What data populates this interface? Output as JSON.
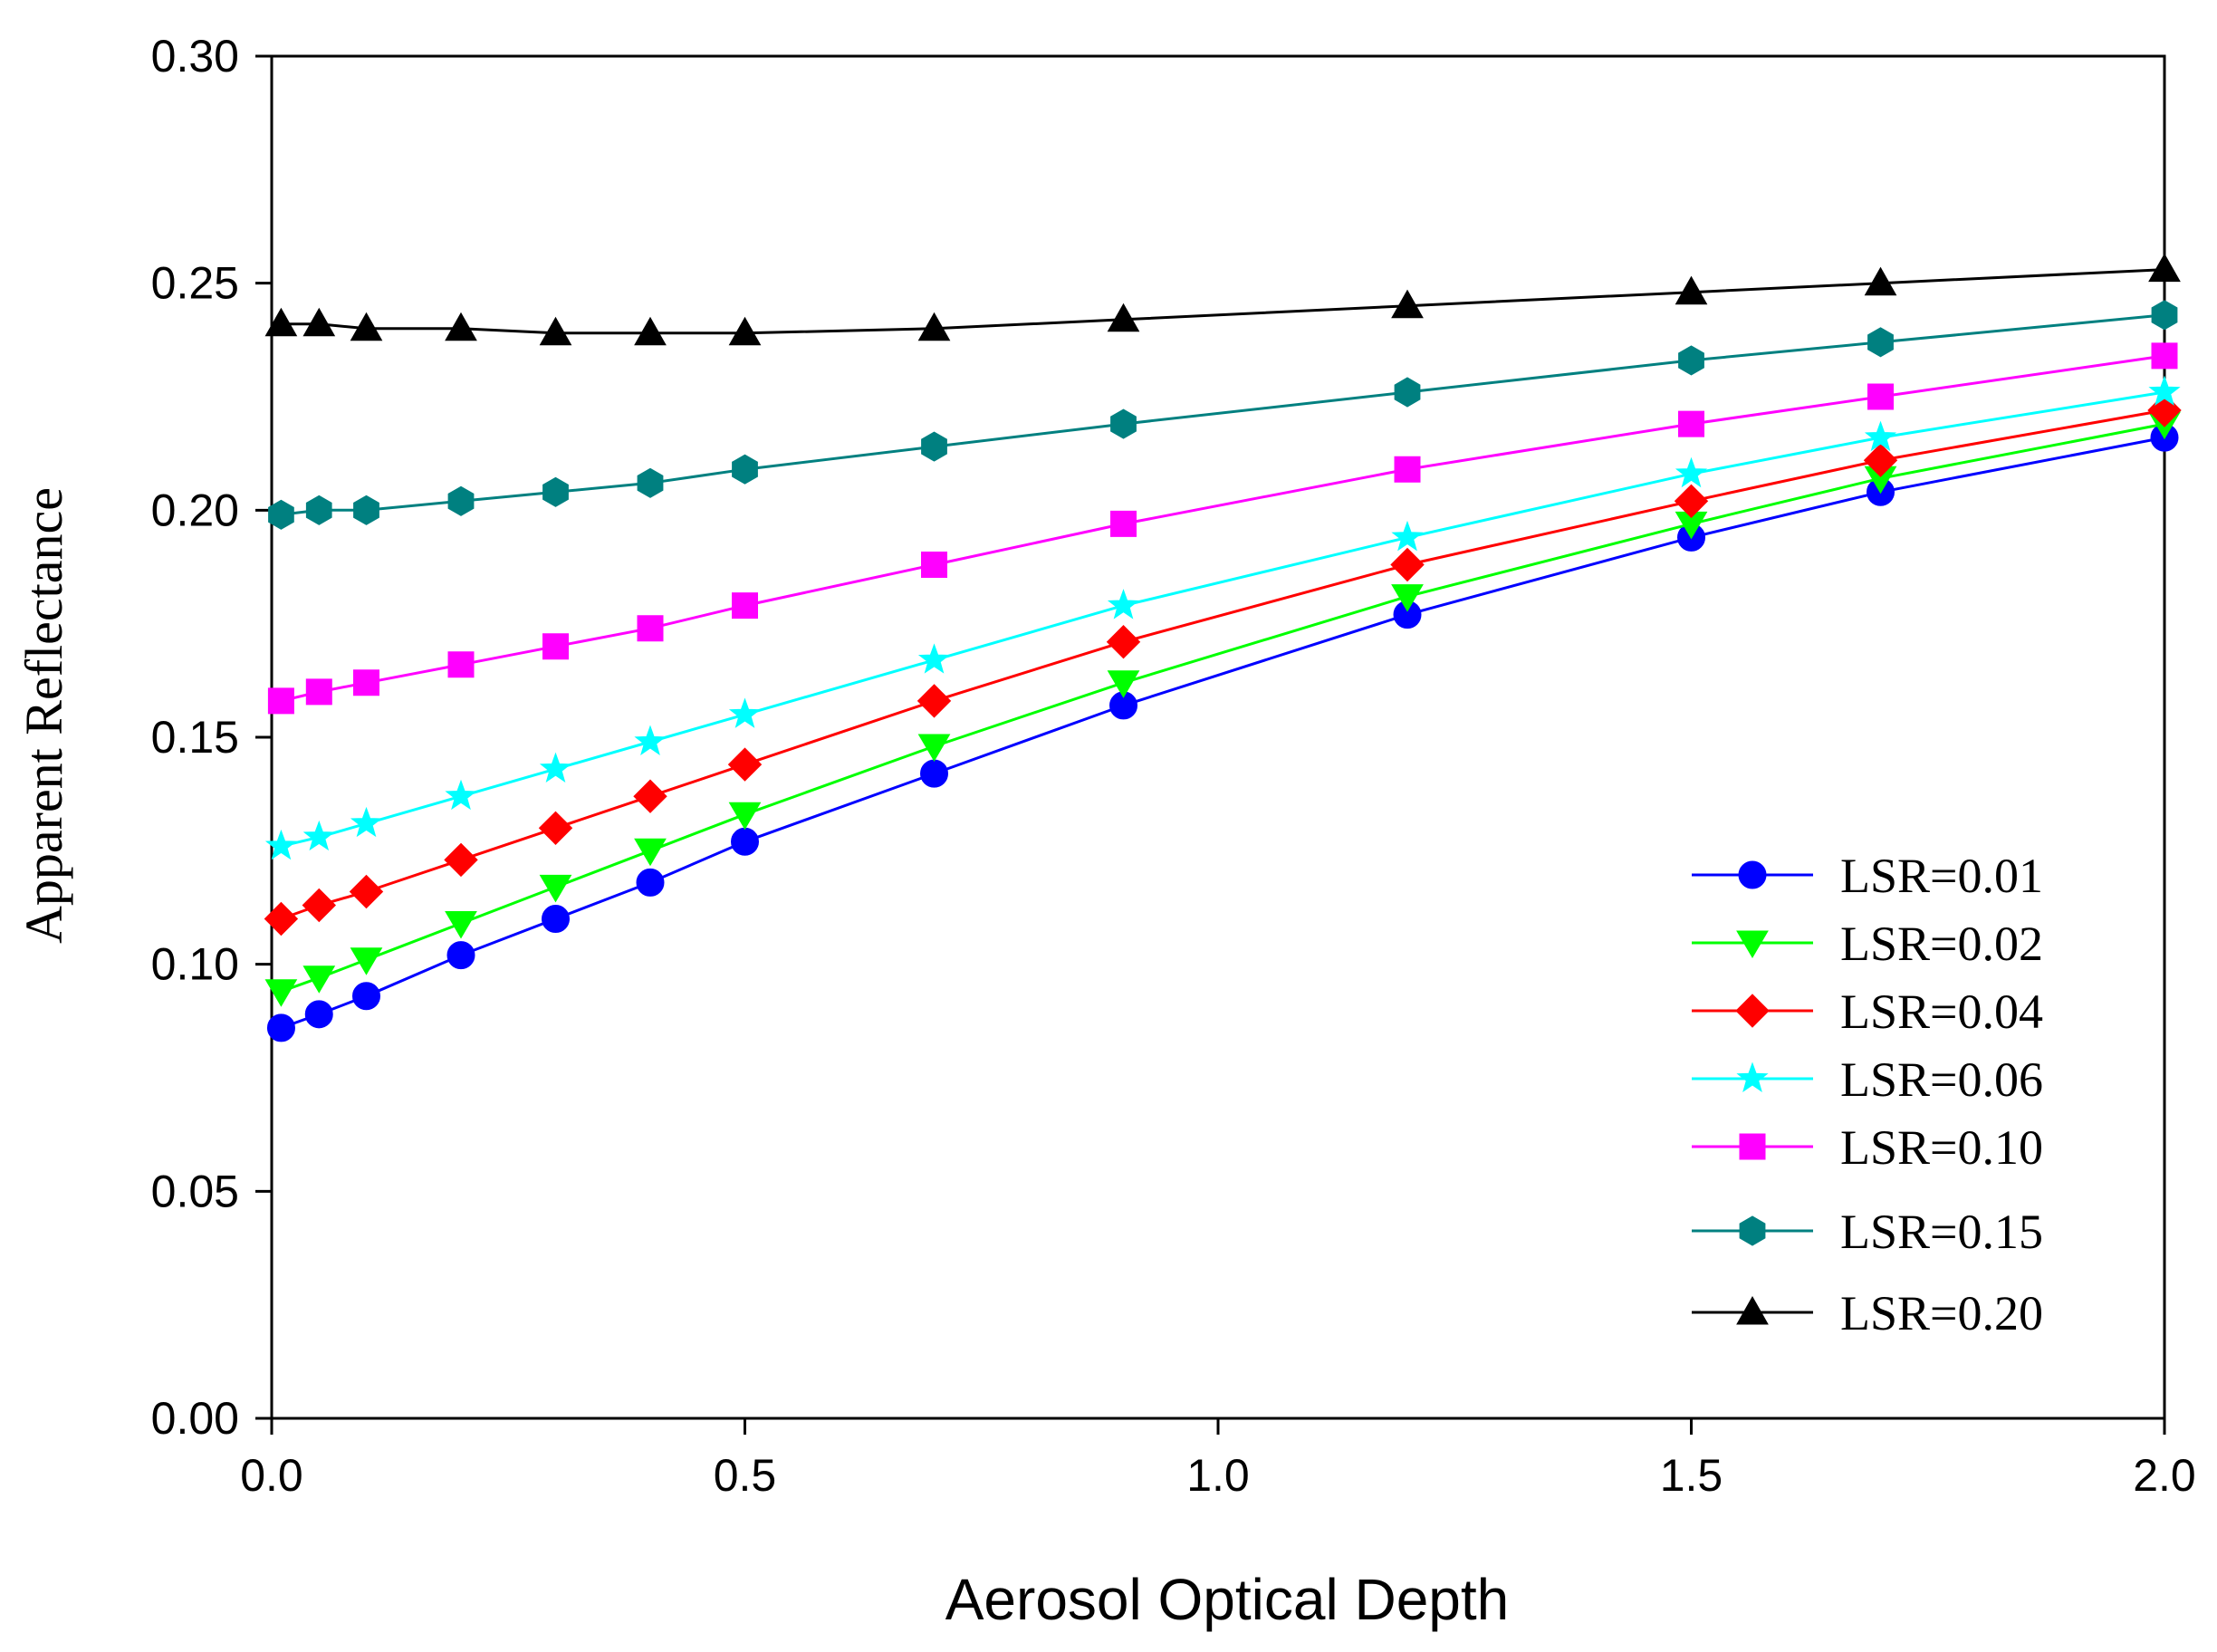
{
  "chart_data": {
    "type": "line",
    "title": "",
    "xlabel": "Aerosol Optical Depth",
    "ylabel": "Apparent Reflectance",
    "xlim": [
      0.0,
      2.0
    ],
    "ylim": [
      0.0,
      0.3
    ],
    "x_ticks": [
      "0.0",
      "0.5",
      "1.0",
      "1.5",
      "2.0"
    ],
    "y_ticks": [
      "0.00",
      "0.05",
      "0.10",
      "0.15",
      "0.20",
      "0.25",
      "0.30"
    ],
    "grid": false,
    "legend_position": "bottom-right",
    "x": [
      0.01,
      0.05,
      0.1,
      0.2,
      0.3,
      0.4,
      0.5,
      0.7,
      0.9,
      1.2,
      1.5,
      1.7,
      2.0
    ],
    "series": [
      {
        "name": "LSR=0.01",
        "color": "#0000FF",
        "marker": "circle",
        "values": [
          0.086,
          0.089,
          0.093,
          0.102,
          0.11,
          0.118,
          0.127,
          0.142,
          0.157,
          0.177,
          0.194,
          0.204,
          0.216
        ]
      },
      {
        "name": "LSR=0.02",
        "color": "#00FF00",
        "marker": "triangle-down",
        "values": [
          0.094,
          0.097,
          0.101,
          0.109,
          0.117,
          0.125,
          0.133,
          0.148,
          0.162,
          0.181,
          0.197,
          0.207,
          0.219
        ]
      },
      {
        "name": "LSR=0.04",
        "color": "#FF0000",
        "marker": "diamond",
        "values": [
          0.11,
          0.113,
          0.116,
          0.123,
          0.13,
          0.137,
          0.144,
          0.158,
          0.171,
          0.188,
          0.202,
          0.211,
          0.222
        ]
      },
      {
        "name": "LSR=0.06",
        "color": "#00FFFF",
        "marker": "star",
        "values": [
          0.126,
          0.128,
          0.131,
          0.137,
          0.143,
          0.149,
          0.155,
          0.167,
          0.179,
          0.194,
          0.208,
          0.216,
          0.226
        ]
      },
      {
        "name": "LSR=0.10",
        "color": "#FF00FF",
        "marker": "square",
        "values": [
          0.158,
          0.16,
          0.162,
          0.166,
          0.17,
          0.174,
          0.179,
          0.188,
          0.197,
          0.209,
          0.219,
          0.225,
          0.234
        ]
      },
      {
        "name": "LSR=0.15",
        "color": "#008080",
        "marker": "hexagon",
        "values": [
          0.199,
          0.2,
          0.2,
          0.202,
          0.204,
          0.206,
          0.209,
          0.214,
          0.219,
          0.226,
          0.233,
          0.237,
          0.243
        ]
      },
      {
        "name": "LSR=0.20",
        "color": "#000000",
        "marker": "triangle-up",
        "values": [
          0.241,
          0.241,
          0.24,
          0.24,
          0.239,
          0.239,
          0.239,
          0.24,
          0.242,
          0.245,
          0.248,
          0.25,
          0.253
        ]
      }
    ]
  }
}
